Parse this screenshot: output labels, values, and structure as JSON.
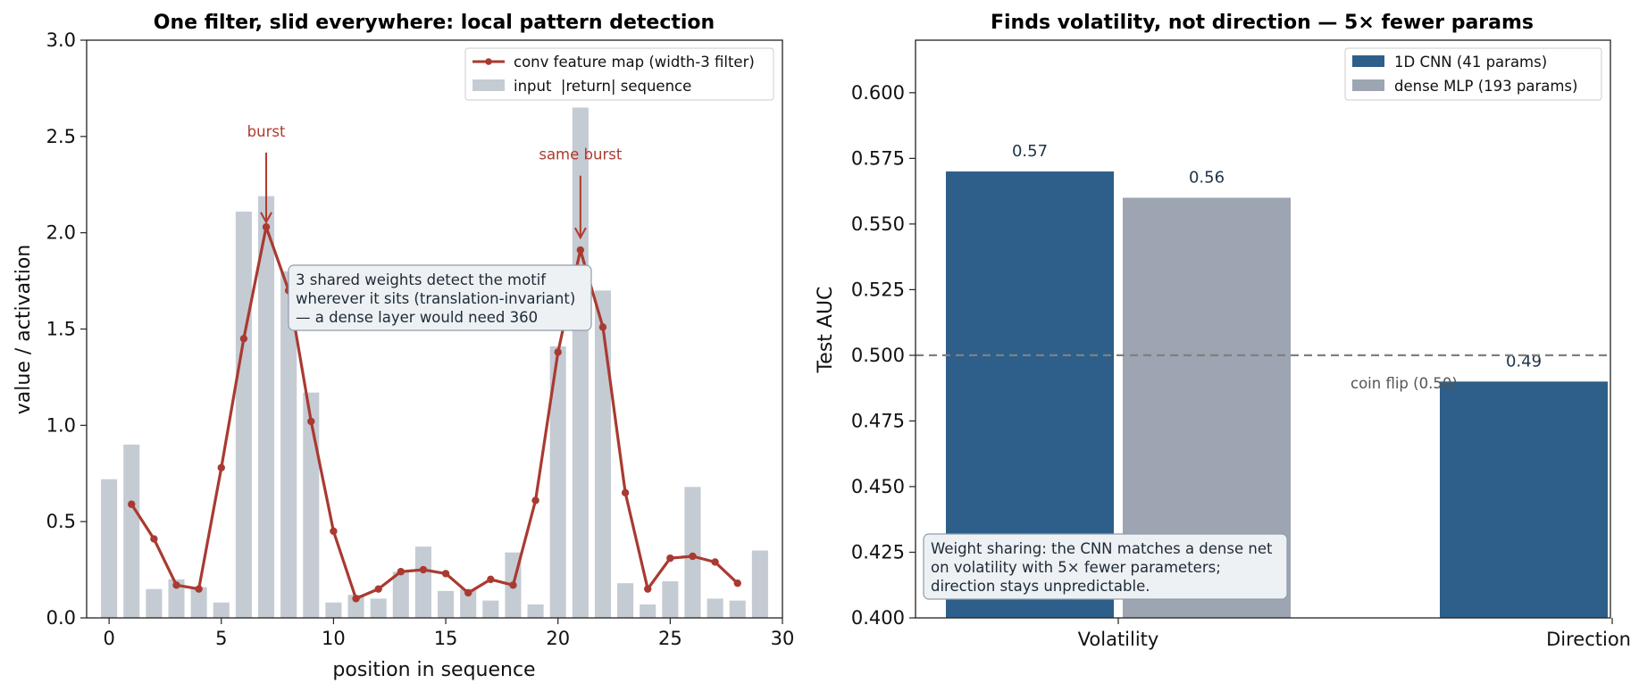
{
  "colors": {
    "conv_line": "#a93a31",
    "input_bars": "#c5cbd3",
    "cnn_bar": "#2d5f8a",
    "mlp_bar": "#9ca5b1",
    "baseline": "#808080",
    "annotation": "#b03a2e",
    "box_fill": "#edf1f4",
    "box_edge": "#8f9cab"
  },
  "chart_data": [
    {
      "type": "bar+line",
      "title": "One filter, slid everywhere: local pattern detection",
      "xlabel": "position in sequence",
      "ylabel": "value / activation",
      "xlim": [
        -1,
        30
      ],
      "ylim": [
        0,
        3.0
      ],
      "xticks": [
        "0",
        "5",
        "10",
        "15",
        "20",
        "25",
        "30"
      ],
      "yticks": [
        "0.0",
        "0.5",
        "1.0",
        "1.5",
        "2.0",
        "2.5",
        "3.0"
      ],
      "legend_position": "top-right",
      "legend": [
        "conv feature map (width-3 filter)",
        "input  |return| sequence"
      ],
      "input": {
        "name": "input  |return| sequence",
        "x": [
          0,
          1,
          2,
          3,
          4,
          5,
          6,
          7,
          8,
          9,
          10,
          11,
          12,
          13,
          14,
          15,
          16,
          17,
          18,
          19,
          20,
          21,
          22,
          23,
          24,
          25,
          26,
          27,
          28,
          29
        ],
        "values": [
          0.72,
          0.9,
          0.15,
          0.2,
          0.16,
          0.08,
          2.11,
          2.19,
          1.8,
          1.17,
          0.08,
          0.12,
          0.1,
          0.24,
          0.37,
          0.14,
          0.15,
          0.09,
          0.34,
          0.07,
          1.41,
          2.65,
          1.7,
          0.18,
          0.07,
          0.19,
          0.68,
          0.1,
          0.09,
          0.35
        ]
      },
      "conv": {
        "name": "conv feature map (width-3 filter)",
        "x": [
          1,
          2,
          3,
          4,
          5,
          6,
          7,
          8,
          9,
          10,
          11,
          12,
          13,
          14,
          15,
          16,
          17,
          18,
          19,
          20,
          21,
          22,
          23,
          24,
          25,
          26,
          27,
          28
        ],
        "values": [
          0.59,
          0.41,
          0.17,
          0.15,
          0.78,
          1.45,
          2.03,
          1.7,
          1.02,
          0.45,
          0.1,
          0.15,
          0.24,
          0.25,
          0.23,
          0.13,
          0.2,
          0.17,
          0.61,
          1.38,
          1.91,
          1.51,
          0.65,
          0.15,
          0.31,
          0.32,
          0.29,
          0.18
        ]
      },
      "annotations": [
        {
          "text": "burst",
          "x": 7,
          "y": 2.05,
          "text_y": 2.5
        },
        {
          "text": "same burst",
          "x": 21,
          "y": 1.97,
          "text_y": 2.38
        }
      ],
      "note": [
        "3 shared weights detect the motif",
        "wherever it sits (translation-invariant)",
        "— a dense layer would need 360"
      ]
    },
    {
      "type": "bar",
      "title": "Finds volatility, not direction — 5× fewer params",
      "xlabel": "",
      "ylabel": "Test AUC",
      "ylim": [
        0.4,
        0.62
      ],
      "yticks": [
        "0.400",
        "0.425",
        "0.450",
        "0.475",
        "0.500",
        "0.525",
        "0.550",
        "0.575",
        "0.600"
      ],
      "categories": [
        "Volatility",
        "Direction"
      ],
      "legend_position": "top-right",
      "series": [
        {
          "name": "1D CNN (41 params)",
          "values": [
            0.57,
            0.49
          ],
          "labels": [
            "0.57",
            "0.49"
          ]
        },
        {
          "name": "dense MLP (193 params)",
          "values": [
            0.56,
            null
          ],
          "labels": [
            "0.56",
            ""
          ]
        }
      ],
      "baseline": {
        "value": 0.5,
        "label": "coin flip (0.50)"
      },
      "note": [
        "Weight sharing: the CNN matches a dense net",
        "on volatility with 5× fewer parameters;",
        "direction stays unpredictable."
      ]
    }
  ]
}
